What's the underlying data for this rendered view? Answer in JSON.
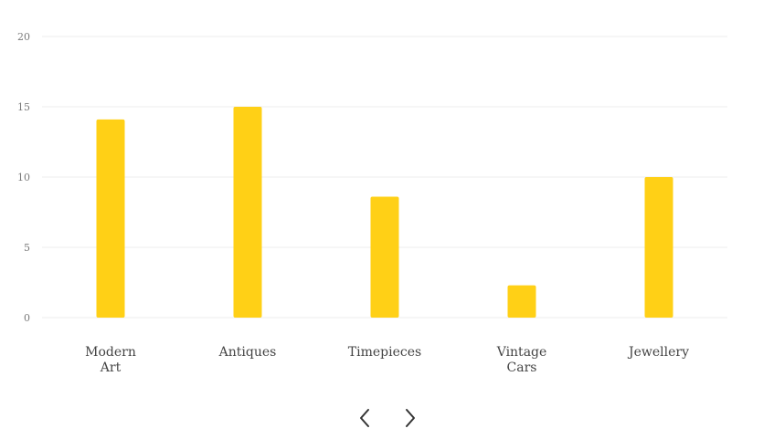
{
  "chart_data": {
    "type": "bar",
    "categories": [
      "Modern Art",
      "Antiques",
      "Timepieces",
      "Vintage Cars",
      "Jewellery"
    ],
    "category_lines": [
      [
        "Modern",
        "Art"
      ],
      [
        "Antiques"
      ],
      [
        "Timepieces"
      ],
      [
        "Vintage",
        "Cars"
      ],
      [
        "Jewellery"
      ]
    ],
    "values": [
      14.1,
      15.0,
      8.6,
      2.3,
      10.0
    ],
    "ylim": [
      0,
      20
    ],
    "yticks": [
      0,
      5,
      10,
      15,
      20
    ],
    "grid": true,
    "bar_color": "#ffd016"
  },
  "nav": {
    "prev_icon": "chevron-left-icon",
    "next_icon": "chevron-right-icon"
  }
}
